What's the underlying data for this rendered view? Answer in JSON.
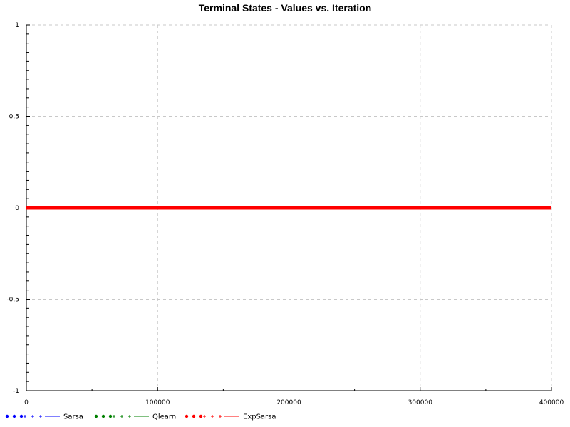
{
  "chart_data": {
    "type": "line",
    "title": "Terminal States - Values vs. Iteration",
    "xlabel": "",
    "ylabel": "",
    "xlim": [
      0,
      400000
    ],
    "ylim": [
      -1,
      1
    ],
    "x_ticks": [
      0,
      100000,
      200000,
      300000,
      400000
    ],
    "x_tick_labels": [
      "0",
      "100000",
      "200000",
      "300000",
      "400000"
    ],
    "y_ticks": [
      -1,
      -0.5,
      0,
      0.5,
      1
    ],
    "y_tick_labels": [
      "-1",
      "-0.5",
      "0",
      "0.5",
      "1"
    ],
    "grid": true,
    "legend_position": "bottom-left",
    "series": [
      {
        "name": "Sarsa",
        "color": "#0000ff",
        "x": [
          0,
          400000
        ],
        "y": [
          0,
          0
        ]
      },
      {
        "name": "Qlearn",
        "color": "#008000",
        "x": [
          0,
          400000
        ],
        "y": [
          0,
          0
        ]
      },
      {
        "name": "ExpSarsa",
        "color": "#ff0000",
        "x": [
          0,
          400000
        ],
        "y": [
          0,
          0
        ]
      }
    ]
  }
}
